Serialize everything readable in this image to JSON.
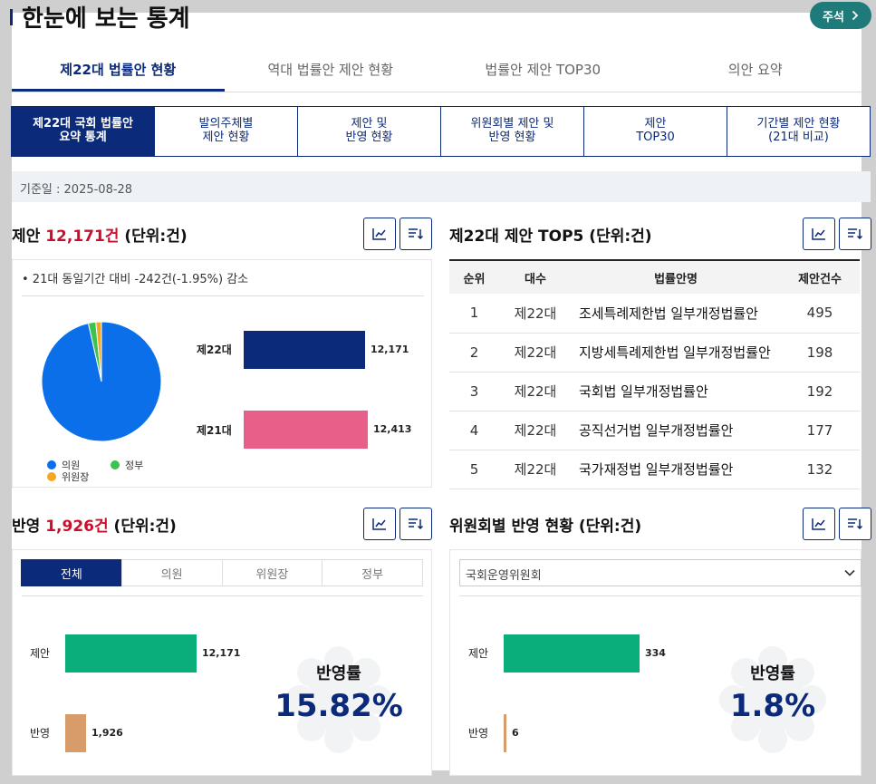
{
  "header": {
    "title": "한눈에 보는 통계",
    "note_button": "주석"
  },
  "tabs": [
    {
      "label": "제22대 법률안 현황",
      "active": true
    },
    {
      "label": "역대 법률안 제안 현황",
      "active": false
    },
    {
      "label": "법률안 제안 TOP30",
      "active": false
    },
    {
      "label": "의안 요약",
      "active": false
    }
  ],
  "subtabs": [
    {
      "label": "제22대 국회 법률안\n요약 통계",
      "active": true
    },
    {
      "label": "발의주체별\n제안 현황",
      "active": false
    },
    {
      "label": "제안 및\n반영 현황",
      "active": false
    },
    {
      "label": "위원회별 제안 및\n반영 현황",
      "active": false
    },
    {
      "label": "제안\nTOP30",
      "active": false
    },
    {
      "label": "기간별 제안 현황\n(21대 비교)",
      "active": false
    }
  ],
  "base_date": "기준일 : 2025-08-28",
  "proposal": {
    "title_prefix": "제안 ",
    "title_count": "12,171건",
    "title_unit": " (단위:건)",
    "note": "• 21대 동일기간 대비 -242건(-1.95%) 감소",
    "legend": [
      {
        "label": "의원",
        "color": "#0a6fe8"
      },
      {
        "label": "정부",
        "color": "#3cc24f"
      },
      {
        "label": "위원장",
        "color": "#f5a623"
      }
    ],
    "pie": [
      {
        "label": "의원",
        "value": 11741,
        "color": "#0a6fe8"
      },
      {
        "label": "정부",
        "value": 246,
        "color": "#3cc24f"
      },
      {
        "label": "위원장",
        "value": 184,
        "color": "#f5a623"
      }
    ],
    "bars": [
      {
        "label": "제22대",
        "value": 12171,
        "value_text": "12,171",
        "color": "#0b2a7a"
      },
      {
        "label": "제21대",
        "value": 12413,
        "value_text": "12,413",
        "color": "#e8608a"
      }
    ]
  },
  "top5": {
    "title": "제22대 제안 TOP5 (단위:건)",
    "columns": [
      "순위",
      "대수",
      "법률안명",
      "제안건수"
    ],
    "rows": [
      [
        "1",
        "제22대",
        "조세특례제한법 일부개정법률안",
        "495"
      ],
      [
        "2",
        "제22대",
        "지방세특례제한법 일부개정법률안",
        "198"
      ],
      [
        "3",
        "제22대",
        "국회법 일부개정법률안",
        "192"
      ],
      [
        "4",
        "제22대",
        "공직선거법 일부개정법률안",
        "177"
      ],
      [
        "5",
        "제22대",
        "국가재정법 일부개정법률안",
        "132"
      ]
    ]
  },
  "reflect": {
    "title_prefix": "반영 ",
    "title_count": "1,926건",
    "title_unit": " (단위:건)",
    "filter_tabs": [
      {
        "label": "전체",
        "active": true
      },
      {
        "label": "의원",
        "active": false
      },
      {
        "label": "위원장",
        "active": false
      },
      {
        "label": "정부",
        "active": false
      }
    ],
    "bars": [
      {
        "label": "제안",
        "value": 12171,
        "value_text": "12,171",
        "color": "#0aae7a"
      },
      {
        "label": "반영",
        "value": 1926,
        "value_text": "1,926",
        "color": "#d89b6a"
      }
    ],
    "rate_label": "반영률",
    "rate_value": "15.82%"
  },
  "committee": {
    "title": "위원회별 반영 현황 (단위:건)",
    "select_value": "국회운영위원회",
    "bars": [
      {
        "label": "제안",
        "value": 334,
        "value_text": "334",
        "color": "#0aae7a"
      },
      {
        "label": "반영",
        "value": 6,
        "value_text": "6",
        "color": "#d89b6a"
      }
    ],
    "rate_label": "반영률",
    "rate_value": "1.8%"
  },
  "icons": {
    "chart_button": "line-chart-icon",
    "sort_button": "sort-list-icon",
    "note_chevron": "chevron-right-icon"
  }
}
